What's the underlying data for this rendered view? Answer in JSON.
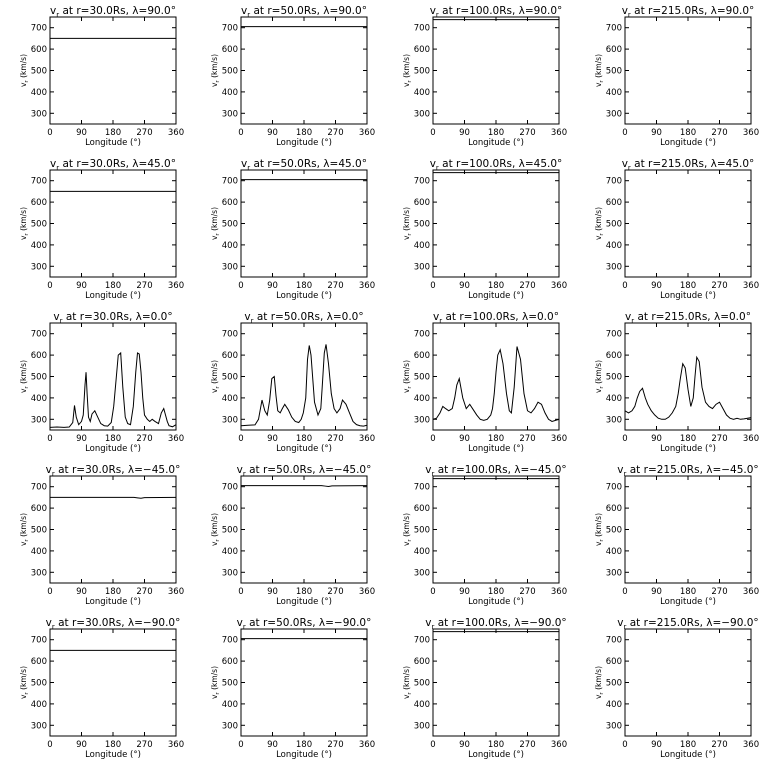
{
  "figure": {
    "rows": 5,
    "cols": 4,
    "x_unit": "(°)",
    "y_unit": "(km/s)"
  },
  "chart_data": [
    {
      "type": "line",
      "title": "v_r at r=30.0Rs, λ=90.0°",
      "var": "v",
      "sub": "r",
      "title_rest": " at r=30.0Rs, λ=90.0°",
      "xlabel": "Longitude (°)",
      "ylabel": "v_r (km/s)",
      "ylabel_var": "v",
      "ylabel_sub": "r",
      "ylabel_rest": " (km/s)",
      "xlim": [
        0,
        360
      ],
      "ylim": [
        250,
        750
      ],
      "xticks": [
        0,
        90,
        180,
        270,
        360
      ],
      "yticks": [
        300,
        400,
        500,
        600,
        700
      ],
      "x": [
        0,
        360
      ],
      "y": [
        650,
        650
      ]
    },
    {
      "type": "line",
      "title": "v_r at r=50.0Rs, λ=90.0°",
      "var": "v",
      "sub": "r",
      "title_rest": " at r=50.0Rs, λ=90.0°",
      "xlabel": "Longitude (°)",
      "ylabel": "v_r (km/s)",
      "ylabel_var": "v",
      "ylabel_sub": "r",
      "ylabel_rest": " (km/s)",
      "xlim": [
        0,
        360
      ],
      "ylim": [
        250,
        750
      ],
      "xticks": [
        0,
        90,
        180,
        270,
        360
      ],
      "yticks": [
        300,
        400,
        500,
        600,
        700
      ],
      "x": [
        0,
        360
      ],
      "y": [
        705,
        705
      ]
    },
    {
      "type": "line",
      "title": "v_r at r=100.0Rs, λ=90.0°",
      "var": "v",
      "sub": "r",
      "title_rest": " at r=100.0Rs, λ=90.0°",
      "xlabel": "Longitude (°)",
      "ylabel": "v_r (km/s)",
      "ylabel_var": "v",
      "ylabel_sub": "r",
      "ylabel_rest": " (km/s)",
      "xlim": [
        0,
        360
      ],
      "ylim": [
        250,
        750
      ],
      "xticks": [
        0,
        90,
        180,
        270,
        360
      ],
      "yticks": [
        300,
        400,
        500,
        600,
        700
      ],
      "x": [
        0,
        360
      ],
      "y": [
        738,
        738
      ]
    },
    {
      "type": "line",
      "title": "v_r at r=215.0Rs, λ=90.0°",
      "var": "v",
      "sub": "r",
      "title_rest": " at r=215.0Rs, λ=90.0°",
      "xlabel": "Longitude (°)",
      "ylabel": "v_r (km/s)",
      "ylabel_var": "v",
      "ylabel_sub": "r",
      "ylabel_rest": " (km/s)",
      "xlim": [
        0,
        360
      ],
      "ylim": [
        250,
        750
      ],
      "xticks": [
        0,
        90,
        180,
        270,
        360
      ],
      "yticks": [
        300,
        400,
        500,
        600,
        700
      ],
      "x": [
        0,
        360
      ],
      "y": [
        755,
        755
      ]
    },
    {
      "type": "line",
      "title": "v_r at r=30.0Rs, λ=45.0°",
      "var": "v",
      "sub": "r",
      "title_rest": " at r=30.0Rs, λ=45.0°",
      "xlabel": "Longitude (°)",
      "ylabel": "v_r (km/s)",
      "ylabel_var": "v",
      "ylabel_sub": "r",
      "ylabel_rest": " (km/s)",
      "xlim": [
        0,
        360
      ],
      "ylim": [
        250,
        750
      ],
      "xticks": [
        0,
        90,
        180,
        270,
        360
      ],
      "yticks": [
        300,
        400,
        500,
        600,
        700
      ],
      "x": [
        0,
        360
      ],
      "y": [
        650,
        650
      ]
    },
    {
      "type": "line",
      "title": "v_r at r=50.0Rs, λ=45.0°",
      "var": "v",
      "sub": "r",
      "title_rest": " at r=50.0Rs, λ=45.0°",
      "xlabel": "Longitude (°)",
      "ylabel": "v_r (km/s)",
      "ylabel_var": "v",
      "ylabel_sub": "r",
      "ylabel_rest": " (km/s)",
      "xlim": [
        0,
        360
      ],
      "ylim": [
        250,
        750
      ],
      "xticks": [
        0,
        90,
        180,
        270,
        360
      ],
      "yticks": [
        300,
        400,
        500,
        600,
        700
      ],
      "x": [
        0,
        360
      ],
      "y": [
        705,
        705
      ]
    },
    {
      "type": "line",
      "title": "v_r at r=100.0Rs, λ=45.0°",
      "var": "v",
      "sub": "r",
      "title_rest": " at r=100.0Rs, λ=45.0°",
      "xlabel": "Longitude (°)",
      "ylabel": "v_r (km/s)",
      "ylabel_var": "v",
      "ylabel_sub": "r",
      "ylabel_rest": " (km/s)",
      "xlim": [
        0,
        360
      ],
      "ylim": [
        250,
        750
      ],
      "xticks": [
        0,
        90,
        180,
        270,
        360
      ],
      "yticks": [
        300,
        400,
        500,
        600,
        700
      ],
      "x": [
        0,
        360
      ],
      "y": [
        738,
        738
      ]
    },
    {
      "type": "line",
      "title": "v_r at r=215.0Rs, λ=45.0°",
      "var": "v",
      "sub": "r",
      "title_rest": " at r=215.0Rs, λ=45.0°",
      "xlabel": "Longitude (°)",
      "ylabel": "v_r (km/s)",
      "ylabel_var": "v",
      "ylabel_sub": "r",
      "ylabel_rest": " (km/s)",
      "xlim": [
        0,
        360
      ],
      "ylim": [
        250,
        750
      ],
      "xticks": [
        0,
        90,
        180,
        270,
        360
      ],
      "yticks": [
        300,
        400,
        500,
        600,
        700
      ],
      "x": [
        0,
        360
      ],
      "y": [
        760,
        760
      ]
    },
    {
      "type": "line",
      "title": "v_r at r=30.0Rs, λ=0.0°",
      "var": "v",
      "sub": "r",
      "title_rest": " at r=30.0Rs, λ=0.0°",
      "xlabel": "Longitude (°)",
      "ylabel": "v_r (km/s)",
      "ylabel_var": "v",
      "ylabel_sub": "r",
      "ylabel_rest": " (km/s)",
      "xlim": [
        0,
        360
      ],
      "ylim": [
        250,
        750
      ],
      "xticks": [
        0,
        90,
        180,
        270,
        360
      ],
      "yticks": [
        300,
        400,
        500,
        600,
        700
      ],
      "x": [
        0,
        20,
        40,
        55,
        65,
        70,
        75,
        82,
        90,
        95,
        100,
        103,
        106,
        110,
        115,
        120,
        128,
        135,
        145,
        155,
        165,
        175,
        182,
        188,
        195,
        202,
        208,
        215,
        222,
        230,
        238,
        245,
        250,
        255,
        260,
        265,
        270,
        278,
        285,
        292,
        300,
        310,
        318,
        325,
        330,
        335,
        340,
        350,
        360
      ],
      "y": [
        262,
        264,
        262,
        264,
        285,
        365,
        310,
        275,
        290,
        320,
        460,
        520,
        420,
        310,
        290,
        325,
        340,
        315,
        280,
        270,
        268,
        285,
        360,
        470,
        600,
        610,
        450,
        310,
        280,
        275,
        360,
        520,
        610,
        605,
        520,
        400,
        320,
        300,
        290,
        300,
        290,
        280,
        330,
        350,
        320,
        290,
        270,
        265,
        275
      ]
    },
    {
      "type": "line",
      "title": "v_r at r=50.0Rs, λ=0.0°",
      "var": "v",
      "sub": "r",
      "title_rest": " at r=50.0Rs, λ=0.0°",
      "xlabel": "Longitude (°)",
      "ylabel": "v_r (km/s)",
      "ylabel_var": "v",
      "ylabel_sub": "r",
      "ylabel_rest": " (km/s)",
      "xlim": [
        0,
        360
      ],
      "ylim": [
        250,
        750
      ],
      "xticks": [
        0,
        90,
        180,
        270,
        360
      ],
      "yticks": [
        300,
        400,
        500,
        600,
        700
      ],
      "x": [
        0,
        20,
        40,
        50,
        55,
        60,
        68,
        75,
        82,
        88,
        95,
        100,
        105,
        112,
        118,
        125,
        135,
        145,
        155,
        165,
        172,
        178,
        185,
        190,
        195,
        200,
        210,
        220,
        228,
        232,
        238,
        243,
        250,
        258,
        266,
        274,
        283,
        290,
        300,
        310,
        320,
        330,
        340,
        350,
        360
      ],
      "y": [
        270,
        272,
        274,
        300,
        345,
        390,
        340,
        320,
        390,
        490,
        500,
        410,
        340,
        330,
        350,
        370,
        345,
        310,
        290,
        285,
        300,
        330,
        400,
        580,
        645,
        600,
        380,
        320,
        350,
        450,
        610,
        650,
        560,
        420,
        350,
        330,
        350,
        390,
        370,
        330,
        290,
        275,
        270,
        268,
        272
      ]
    },
    {
      "type": "line",
      "title": "v_r at r=100.0Rs, λ=0.0°",
      "var": "v",
      "sub": "r",
      "title_rest": " at r=100.0Rs, λ=0.0°",
      "xlabel": "Longitude (°)",
      "ylabel": "v_r (km/s)",
      "ylabel_var": "v",
      "ylabel_sub": "r",
      "ylabel_rest": " (km/s)",
      "xlim": [
        0,
        360
      ],
      "ylim": [
        250,
        750
      ],
      "xticks": [
        0,
        90,
        180,
        270,
        360
      ],
      "yticks": [
        300,
        400,
        500,
        600,
        700
      ],
      "x": [
        0,
        10,
        20,
        28,
        36,
        45,
        55,
        62,
        68,
        75,
        85,
        95,
        105,
        115,
        125,
        135,
        145,
        155,
        165,
        170,
        175,
        180,
        185,
        192,
        200,
        210,
        218,
        224,
        232,
        240,
        250,
        260,
        270,
        280,
        290,
        300,
        310,
        320,
        330,
        340,
        350,
        360
      ],
      "y": [
        300,
        305,
        330,
        360,
        350,
        340,
        350,
        400,
        460,
        490,
        400,
        350,
        370,
        345,
        320,
        300,
        295,
        300,
        320,
        350,
        420,
        520,
        600,
        625,
        560,
        420,
        340,
        330,
        450,
        640,
        580,
        420,
        340,
        330,
        350,
        380,
        370,
        330,
        300,
        290,
        295,
        300
      ]
    },
    {
      "type": "line",
      "title": "v_r at r=215.0Rs, λ=0.0°",
      "var": "v",
      "sub": "r",
      "title_rest": " at r=215.0Rs, λ=0.0°",
      "xlabel": "Longitude (°)",
      "ylabel": "v_r (km/s)",
      "ylabel_var": "v",
      "ylabel_sub": "r",
      "ylabel_rest": " (km/s)",
      "xlim": [
        0,
        360
      ],
      "ylim": [
        250,
        750
      ],
      "xticks": [
        0,
        90,
        180,
        270,
        360
      ],
      "yticks": [
        300,
        400,
        500,
        600,
        700
      ],
      "x": [
        0,
        10,
        20,
        28,
        35,
        42,
        50,
        58,
        65,
        75,
        85,
        95,
        105,
        115,
        125,
        135,
        145,
        152,
        158,
        165,
        172,
        180,
        188,
        195,
        200,
        205,
        212,
        220,
        230,
        240,
        250,
        260,
        270,
        280,
        290,
        300,
        310,
        320,
        330,
        340,
        350,
        360
      ],
      "y": [
        340,
        330,
        340,
        360,
        400,
        430,
        445,
        400,
        370,
        340,
        320,
        305,
        300,
        300,
        310,
        330,
        360,
        420,
        490,
        560,
        540,
        440,
        360,
        400,
        500,
        590,
        570,
        450,
        380,
        360,
        350,
        370,
        380,
        350,
        320,
        305,
        300,
        305,
        300,
        302,
        305,
        308
      ]
    },
    {
      "type": "line",
      "title": "v_r at r=30.0Rs, λ=−45.0°",
      "var": "v",
      "sub": "r",
      "title_rest": " at r=30.0Rs, λ=−45.0°",
      "xlabel": "Longitude (°)",
      "ylabel": "v_r (km/s)",
      "ylabel_var": "v",
      "ylabel_sub": "r",
      "ylabel_rest": " (km/s)",
      "xlim": [
        0,
        360
      ],
      "ylim": [
        250,
        750
      ],
      "xticks": [
        0,
        90,
        180,
        270,
        360
      ],
      "yticks": [
        300,
        400,
        500,
        600,
        700
      ],
      "x": [
        0,
        240,
        250,
        260,
        270,
        360
      ],
      "y": [
        650,
        650,
        648,
        646,
        649,
        650
      ]
    },
    {
      "type": "line",
      "title": "v_r at r=50.0Rs, λ=−45.0°",
      "var": "v",
      "sub": "r",
      "title_rest": " at r=50.0Rs, λ=−45.0°",
      "xlabel": "Longitude (°)",
      "ylabel": "v_r (km/s)",
      "ylabel_var": "v",
      "ylabel_sub": "r",
      "ylabel_rest": " (km/s)",
      "xlim": [
        0,
        360
      ],
      "ylim": [
        250,
        750
      ],
      "xticks": [
        0,
        90,
        180,
        270,
        360
      ],
      "yticks": [
        300,
        400,
        500,
        600,
        700
      ],
      "x": [
        0,
        230,
        240,
        250,
        260,
        360
      ],
      "y": [
        705,
        705,
        703,
        701,
        704,
        705
      ]
    },
    {
      "type": "line",
      "title": "v_r at r=100.0Rs, λ=−45.0°",
      "var": "v",
      "sub": "r",
      "title_rest": " at r=100.0Rs, λ=−45.0°",
      "xlabel": "Longitude (°)",
      "ylabel": "v_r (km/s)",
      "ylabel_var": "v",
      "ylabel_sub": "r",
      "ylabel_rest": " (km/s)",
      "xlim": [
        0,
        360
      ],
      "ylim": [
        250,
        750
      ],
      "xticks": [
        0,
        90,
        180,
        270,
        360
      ],
      "yticks": [
        300,
        400,
        500,
        600,
        700
      ],
      "x": [
        0,
        360
      ],
      "y": [
        738,
        738
      ]
    },
    {
      "type": "line",
      "title": "v_r at r=215.0Rs, λ=−45.0°",
      "var": "v",
      "sub": "r",
      "title_rest": " at r=215.0Rs, λ=−45.0°",
      "xlabel": "Longitude (°)",
      "ylabel": "v_r (km/s)",
      "ylabel_var": "v",
      "ylabel_sub": "r",
      "ylabel_rest": " (km/s)",
      "xlim": [
        0,
        360
      ],
      "ylim": [
        250,
        750
      ],
      "xticks": [
        0,
        90,
        180,
        270,
        360
      ],
      "yticks": [
        300,
        400,
        500,
        600,
        700
      ],
      "x": [
        0,
        360
      ],
      "y": [
        757,
        757
      ]
    },
    {
      "type": "line",
      "title": "v_r at r=30.0Rs, λ=−90.0°",
      "var": "v",
      "sub": "r",
      "title_rest": " at r=30.0Rs, λ=−90.0°",
      "xlabel": "Longitude (°)",
      "ylabel": "v_r (km/s)",
      "ylabel_var": "v",
      "ylabel_sub": "r",
      "ylabel_rest": " (km/s)",
      "xlim": [
        0,
        360
      ],
      "ylim": [
        250,
        750
      ],
      "xticks": [
        0,
        90,
        180,
        270,
        360
      ],
      "yticks": [
        300,
        400,
        500,
        600,
        700
      ],
      "x": [
        0,
        360
      ],
      "y": [
        650,
        650
      ]
    },
    {
      "type": "line",
      "title": "v_r at r=50.0Rs, λ=−90.0°",
      "var": "v",
      "sub": "r",
      "title_rest": " at r=50.0Rs, λ=−90.0°",
      "xlabel": "Longitude (°)",
      "ylabel": "v_r (km/s)",
      "ylabel_var": "v",
      "ylabel_sub": "r",
      "ylabel_rest": " (km/s)",
      "xlim": [
        0,
        360
      ],
      "ylim": [
        250,
        750
      ],
      "xticks": [
        0,
        90,
        180,
        270,
        360
      ],
      "yticks": [
        300,
        400,
        500,
        600,
        700
      ],
      "x": [
        0,
        360
      ],
      "y": [
        705,
        705
      ]
    },
    {
      "type": "line",
      "title": "v_r at r=100.0Rs, λ=−90.0°",
      "var": "v",
      "sub": "r",
      "title_rest": " at r=100.0Rs, λ=−90.0°",
      "xlabel": "Longitude (°)",
      "ylabel": "v_r (km/s)",
      "ylabel_var": "v",
      "ylabel_sub": "r",
      "ylabel_rest": " (km/s)",
      "xlim": [
        0,
        360
      ],
      "ylim": [
        250,
        750
      ],
      "xticks": [
        0,
        90,
        180,
        270,
        360
      ],
      "yticks": [
        300,
        400,
        500,
        600,
        700
      ],
      "x": [
        0,
        360
      ],
      "y": [
        738,
        738
      ]
    },
    {
      "type": "line",
      "title": "v_r at r=215.0Rs, λ=−90.0°",
      "var": "v",
      "sub": "r",
      "title_rest": " at r=215.0Rs, λ=−90.0°",
      "xlabel": "Longitude (°)",
      "ylabel": "v_r (km/s)",
      "ylabel_var": "v",
      "ylabel_sub": "r",
      "ylabel_rest": " (km/s)",
      "xlim": [
        0,
        360
      ],
      "ylim": [
        250,
        750
      ],
      "xticks": [
        0,
        90,
        180,
        270,
        360
      ],
      "yticks": [
        300,
        400,
        500,
        600,
        700
      ],
      "x": [
        0,
        360
      ],
      "y": [
        757,
        757
      ]
    }
  ]
}
